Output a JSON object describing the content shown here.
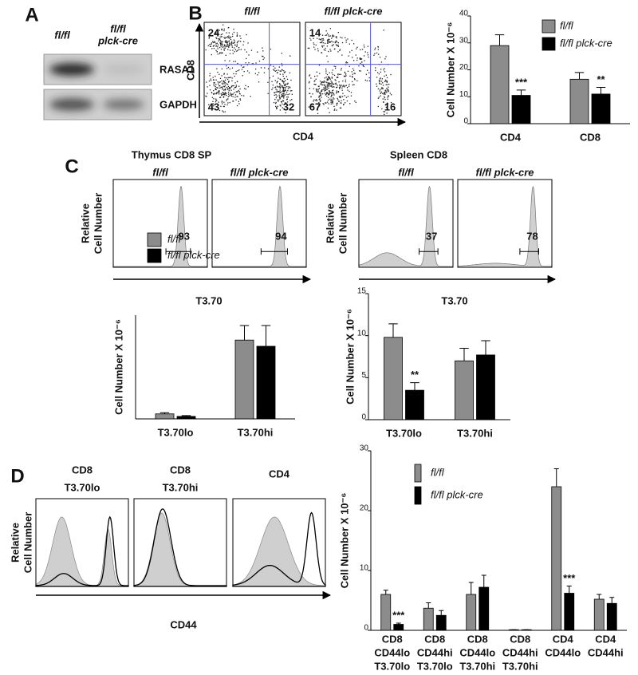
{
  "panel_labels": [
    "A",
    "B",
    "C",
    "D"
  ],
  "blot": {
    "lanes": [
      [
        "fl/fl"
      ],
      [
        "fl/fl",
        "plck-cre"
      ]
    ],
    "bands": [
      "RASA1",
      "GAPDH"
    ]
  },
  "dot_plots": {
    "samples": [
      "fl/fl",
      "fl/fl plck-cre"
    ],
    "x_label": "CD4",
    "y_label": "CD8",
    "quadrants": [
      {
        "upper_left": 24,
        "lower_left": 43,
        "lower_right": 32
      },
      {
        "upper_left": 14,
        "lower_left": 67,
        "lower_right": 16
      }
    ]
  },
  "histograms_c": {
    "groups": [
      {
        "title": "Thymus CD8  SP",
        "samples": [
          "fl/fl",
          "fl/fl plck-cre"
        ],
        "gates": [
          93,
          94
        ]
      },
      {
        "title": "Spleen  CD8",
        "samples": [
          "fl/fl",
          "fl/fl plck-cre"
        ],
        "gates": [
          37,
          78
        ]
      }
    ],
    "y_label": [
      "Relative",
      "Cell Number"
    ],
    "x_label": "T3.70"
  },
  "histograms_d": {
    "titles": [
      [
        "CD8",
        "T3.70lo"
      ],
      [
        "CD8",
        "T3.70hi"
      ],
      [
        "CD4"
      ]
    ],
    "y_label": [
      "Relative",
      "Cell Number"
    ],
    "x_label": "CD44"
  },
  "chart_data": [
    {
      "type": "bar",
      "y_label": "Cell Number X 10⁻⁶",
      "categories": [
        "CD4",
        "CD8"
      ],
      "series": [
        {
          "name": "fl/fl",
          "color": "#8c8c8c",
          "values": [
            29,
            16.5
          ],
          "errors": [
            4,
            2.5
          ],
          "significance": [
            null,
            null
          ]
        },
        {
          "name": "fl/fl plck-cre",
          "color": "#000000",
          "values": [
            10.5,
            11
          ],
          "errors": [
            2,
            2.5
          ],
          "significance": [
            "***",
            "**"
          ]
        }
      ],
      "ylim": [
        0,
        40
      ],
      "yticks": [
        0,
        10,
        20,
        30,
        40
      ]
    },
    {
      "type": "bar",
      "y_label": "Cell Number X 10⁻⁶",
      "categories": [
        "T3.70lo",
        "T3.70hi"
      ],
      "series": [
        {
          "name": "fl/fl",
          "color": "#8c8c8c",
          "values": [
            1.2,
            19
          ],
          "errors": [
            0.3,
            3.5
          ],
          "significance": [
            null,
            null
          ]
        },
        {
          "name": "fl/fl plck-cre",
          "color": "#000000",
          "values": [
            0.6,
            17.5
          ],
          "errors": [
            0.2,
            5
          ],
          "significance": [
            null,
            null
          ]
        }
      ],
      "ylim": [
        0,
        25
      ]
    },
    {
      "type": "bar",
      "y_label": "Cell Number X 10⁻⁶",
      "categories": [
        "T3.70lo",
        "T3.70hi"
      ],
      "series": [
        {
          "name": "fl/fl",
          "color": "#8c8c8c",
          "values": [
            9.8,
            7
          ],
          "errors": [
            1.6,
            1.5
          ],
          "significance": [
            null,
            null
          ]
        },
        {
          "name": "fl/fl plck-cre",
          "color": "#000000",
          "values": [
            3.5,
            7.7
          ],
          "errors": [
            0.9,
            1.7
          ],
          "significance": [
            "**",
            null
          ]
        }
      ],
      "ylim": [
        0,
        15
      ],
      "yticks": [
        0,
        5,
        10,
        15
      ]
    },
    {
      "type": "bar",
      "y_label": "Cell Number X 10⁻⁶",
      "categories": [
        [
          "CD8",
          "CD44lo",
          "T3.70lo"
        ],
        [
          "CD8",
          "CD44hi",
          "T3.70lo"
        ],
        [
          "CD8",
          "CD44lo",
          "T3.70hi"
        ],
        [
          "CD8",
          "CD44hi",
          "T3.70hi"
        ],
        [
          "CD4",
          "CD44lo"
        ],
        [
          "CD4",
          "CD44hi"
        ]
      ],
      "series": [
        {
          "name": "fl/fl",
          "color": "#8c8c8c",
          "values": [
            6,
            3.7,
            6,
            0.1,
            24,
            5.2
          ],
          "errors": [
            0.7,
            0.9,
            2,
            0,
            3,
            0.8
          ],
          "significance": [
            null,
            null,
            null,
            null,
            null,
            null
          ]
        },
        {
          "name": "fl/fl plck-cre",
          "color": "#000000",
          "values": [
            1,
            2.5,
            7.2,
            0.1,
            6.2,
            4.5
          ],
          "errors": [
            0.2,
            0.8,
            2,
            0,
            1.2,
            1
          ],
          "significance": [
            "***",
            null,
            null,
            null,
            "***",
            null
          ]
        }
      ],
      "ylim": [
        0,
        30
      ],
      "yticks": [
        0,
        10,
        20,
        30
      ]
    }
  ]
}
